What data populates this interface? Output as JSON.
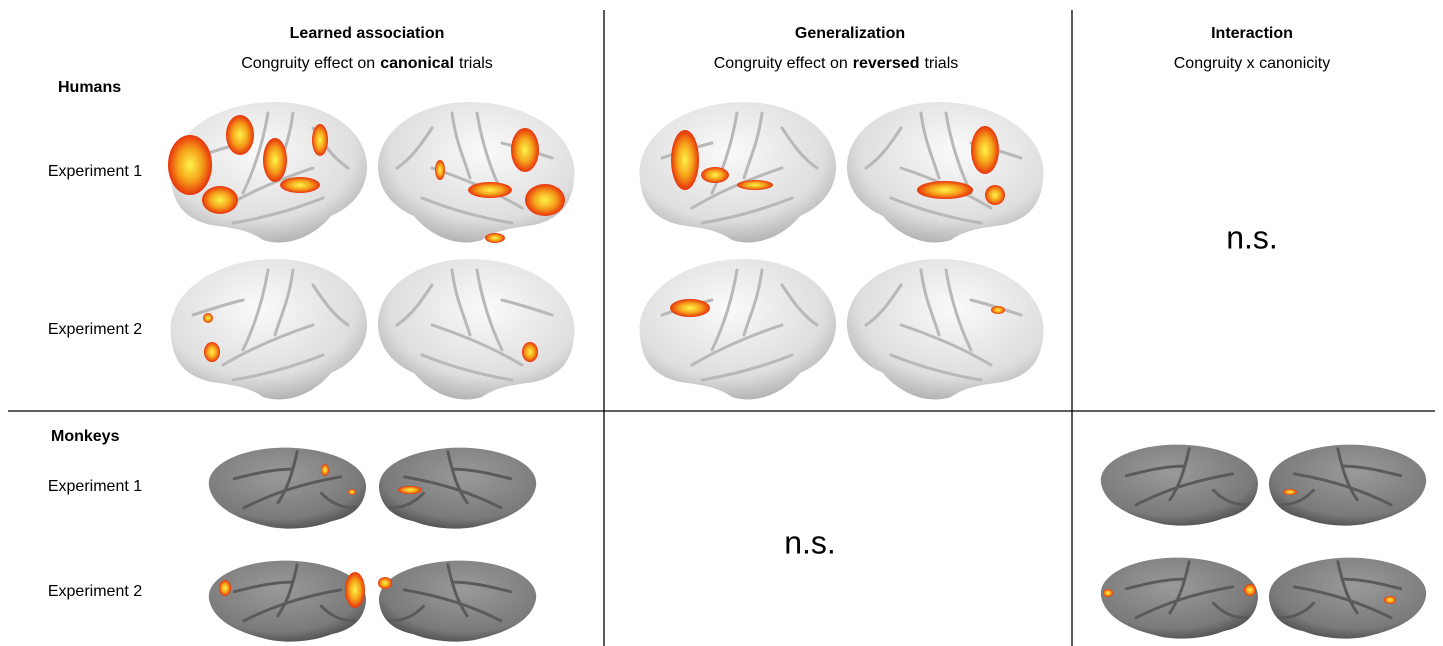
{
  "columns": [
    {
      "title": "Learned association",
      "subtitle": [
        "Congruity effect on",
        "canonical",
        "trials"
      ]
    },
    {
      "title": "Generalization",
      "subtitle": [
        "Congruity effect on",
        "reversed",
        "trials"
      ]
    },
    {
      "title": "Interaction",
      "subtitle": [
        "Congruity x canonicity"
      ]
    }
  ],
  "rows": [
    {
      "group": "Humans",
      "experiments": [
        "Experiment 1",
        "Experiment 2"
      ]
    },
    {
      "group": "Monkeys",
      "experiments": [
        "Experiment 1",
        "Experiment 2"
      ]
    }
  ],
  "cells": {
    "humans_interaction": "n.s.",
    "monkeys_generalization": "n.s."
  }
}
